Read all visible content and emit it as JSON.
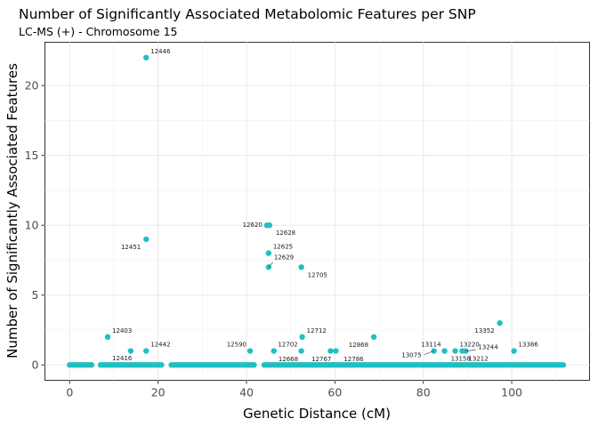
{
  "chart_data": {
    "type": "scatter",
    "title": "Number of Significantly Associated Metabolomic Features per SNP",
    "subtitle": "LC-MS (+) - Chromosome 15",
    "xlabel": "Genetic Distance (cM)",
    "ylabel": "Number of Significantly Associated Features",
    "xlim": [
      -5.6,
      117.6
    ],
    "ylim": [
      -1.1,
      23.1
    ],
    "x_ticks": [
      0,
      20,
      40,
      60,
      80,
      100
    ],
    "y_ticks": [
      0,
      5,
      10,
      15,
      20
    ],
    "x_tick_labels": [
      "0",
      "20",
      "40",
      "60",
      "80",
      "100"
    ],
    "y_tick_labels": [
      "0",
      "5",
      "10",
      "15",
      "20"
    ],
    "grid": true,
    "point_color": "#1fbfc3",
    "points": [
      {
        "x": 17.3,
        "y": 22
      },
      {
        "x": 44.6,
        "y": 10
      },
      {
        "x": 45.2,
        "y": 10
      },
      {
        "x": 17.3,
        "y": 9
      },
      {
        "x": 45.0,
        "y": 8
      },
      {
        "x": 45.0,
        "y": 7
      },
      {
        "x": 52.4,
        "y": 7
      },
      {
        "x": 97.3,
        "y": 3
      },
      {
        "x": 8.6,
        "y": 2
      },
      {
        "x": 52.6,
        "y": 2
      },
      {
        "x": 68.8,
        "y": 2
      },
      {
        "x": 13.8,
        "y": 1
      },
      {
        "x": 17.3,
        "y": 1
      },
      {
        "x": 40.8,
        "y": 1
      },
      {
        "x": 46.2,
        "y": 1
      },
      {
        "x": 52.4,
        "y": 1
      },
      {
        "x": 59.0,
        "y": 1
      },
      {
        "x": 60.2,
        "y": 1
      },
      {
        "x": 82.4,
        "y": 1
      },
      {
        "x": 84.8,
        "y": 1
      },
      {
        "x": 87.2,
        "y": 1
      },
      {
        "x": 88.8,
        "y": 1
      },
      {
        "x": 89.6,
        "y": 1
      },
      {
        "x": 100.5,
        "y": 1
      }
    ],
    "zero_point_ranges": [
      [
        0,
        5
      ],
      [
        7,
        21
      ],
      [
        23,
        42
      ],
      [
        44,
        112
      ]
    ],
    "zero_point_step": 0.55,
    "annotations": [
      {
        "label": "12446",
        "x": 17.3,
        "y": 22,
        "pos": "ur"
      },
      {
        "label": "12620",
        "x": 44.6,
        "y": 10,
        "pos": "l"
      },
      {
        "label": "12628",
        "x": 45.2,
        "y": 10,
        "pos": "dr"
      },
      {
        "label": "12451",
        "x": 17.3,
        "y": 9,
        "pos": "dl"
      },
      {
        "label": "12625",
        "x": 45.0,
        "y": 8,
        "pos": "ur"
      },
      {
        "label": "12629",
        "x": 45.0,
        "y": 7,
        "pos": "urline"
      },
      {
        "label": "12705",
        "x": 52.4,
        "y": 7,
        "pos": "dr"
      },
      {
        "label": "13352",
        "x": 97.3,
        "y": 3,
        "pos": "dl"
      },
      {
        "label": "12403",
        "x": 8.6,
        "y": 2,
        "pos": "ur"
      },
      {
        "label": "12712",
        "x": 52.6,
        "y": 2,
        "pos": "ur"
      },
      {
        "label": "12868",
        "x": 68.8,
        "y": 2,
        "pos": "dl"
      },
      {
        "label": "12442",
        "x": 17.3,
        "y": 1,
        "pos": "ur"
      },
      {
        "label": "12590",
        "x": 40.8,
        "y": 1,
        "pos": "ul"
      },
      {
        "label": "12702",
        "x": 52.4,
        "y": 1,
        "pos": "ul"
      },
      {
        "label": "12416",
        "x": 8.6,
        "y": 0,
        "pos": "ur"
      },
      {
        "label": "12668",
        "x": 46.2,
        "y": 0,
        "pos": "dr0"
      },
      {
        "label": "12767",
        "x": 60.2,
        "y": 0,
        "pos": "dl0"
      },
      {
        "label": "12786",
        "x": 61.0,
        "y": 0,
        "pos": "dr0"
      },
      {
        "label": "13114",
        "x": 84.8,
        "y": 1,
        "pos": "ul"
      },
      {
        "label": "13075",
        "x": 82.4,
        "y": 1,
        "pos": "dlline"
      },
      {
        "label": "13158",
        "x": 84.8,
        "y": 1,
        "pos": "dr"
      },
      {
        "label": "13220",
        "x": 87.2,
        "y": 1,
        "pos": "ur"
      },
      {
        "label": "13244",
        "x": 89.6,
        "y": 1,
        "pos": "rline"
      },
      {
        "label": "13212",
        "x": 88.8,
        "y": 1,
        "pos": "dr"
      },
      {
        "label": "13386",
        "x": 100.5,
        "y": 1,
        "pos": "ur"
      }
    ]
  }
}
